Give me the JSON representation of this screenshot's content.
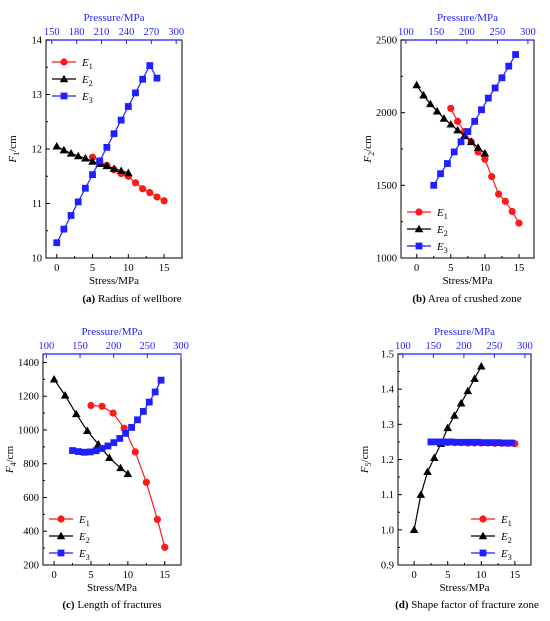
{
  "colors": {
    "E1": "#ff1a1a",
    "E2": "#000000",
    "E3": "#1f1fff",
    "top_axis": "#1f1fff"
  },
  "chart_data": [
    {
      "id": "a",
      "type": "line",
      "caption_letter": "(a)",
      "caption_text": " Radius of wellbore",
      "xlabel": "Stress/MPa",
      "x2label": "Pressure/MPa",
      "ylabel_main": "F",
      "ylabel_sub": "1",
      "ylabel_unit": "/cm",
      "xlim": [
        -1.5,
        17.5
      ],
      "ylim": [
        10,
        14
      ],
      "x2lim": [
        143,
        307
      ],
      "xticks": [
        0,
        5,
        10,
        15
      ],
      "yticks": [
        10,
        11,
        12,
        13,
        14
      ],
      "x2ticks": [
        150,
        180,
        210,
        240,
        270,
        300
      ],
      "legend": [
        {
          "main": "E",
          "sub": "1"
        },
        {
          "main": "E",
          "sub": "2"
        },
        {
          "main": "E",
          "sub": "3"
        }
      ],
      "legend_position": "top-left",
      "series": [
        {
          "marker": "circle",
          "x": [
            5,
            6,
            7,
            8,
            9,
            10,
            11,
            12,
            13,
            14,
            15
          ],
          "y": [
            11.85,
            11.78,
            11.7,
            11.62,
            11.55,
            11.5,
            11.38,
            11.27,
            11.2,
            11.12,
            11.05
          ]
        },
        {
          "marker": "triangle",
          "x": [
            0,
            1,
            2,
            3,
            4,
            5,
            6,
            7,
            8,
            9,
            10
          ],
          "y": [
            12.05,
            11.98,
            11.92,
            11.87,
            11.83,
            11.77,
            11.73,
            11.69,
            11.64,
            11.6,
            11.56
          ]
        },
        {
          "marker": "square",
          "x": [
            0,
            1,
            2,
            3,
            4,
            5,
            6,
            7,
            8,
            9,
            10,
            11,
            12,
            13,
            14
          ],
          "y": [
            10.28,
            10.53,
            10.78,
            11.03,
            11.28,
            11.53,
            11.78,
            12.03,
            12.28,
            12.53,
            12.78,
            13.03,
            13.28,
            13.53,
            13.3
          ]
        }
      ]
    },
    {
      "id": "b",
      "type": "line",
      "caption_letter": "(b)",
      "caption_text": " Area of crushed zone",
      "xlabel": "Stress/MPa",
      "x2label": "Pressure/MPa",
      "ylabel_main": "F",
      "ylabel_sub": "2",
      "ylabel_unit": "/cm",
      "xlim": [
        -2.3,
        17.2
      ],
      "ylim": [
        1000,
        2500
      ],
      "x2lim": [
        92,
        310
      ],
      "xticks": [
        0,
        5,
        10,
        15
      ],
      "yticks": [
        1000,
        1500,
        2000,
        2500
      ],
      "x2ticks": [
        100,
        150,
        200,
        250,
        300
      ],
      "legend": [
        {
          "main": "E",
          "sub": "1"
        },
        {
          "main": "E",
          "sub": "2"
        },
        {
          "main": "E",
          "sub": "3"
        }
      ],
      "legend_position": "bottom-left",
      "series": [
        {
          "marker": "circle",
          "x": [
            5,
            6,
            7,
            8,
            9,
            10,
            11,
            12,
            13,
            14,
            15
          ],
          "y": [
            2030,
            1940,
            1870,
            1800,
            1730,
            1680,
            1560,
            1440,
            1390,
            1320,
            1240
          ]
        },
        {
          "marker": "triangle",
          "x": [
            0,
            1,
            2,
            3,
            4,
            5,
            6,
            7,
            8,
            9,
            10
          ],
          "y": [
            2190,
            2120,
            2060,
            2010,
            1960,
            1920,
            1880,
            1840,
            1800,
            1760,
            1720
          ]
        },
        {
          "marker": "square",
          "x": [
            2.5,
            3.5,
            4.5,
            5.5,
            6.5,
            7.5,
            8.5,
            9.5,
            10.5,
            11.5,
            12.5,
            13.5,
            14.5
          ],
          "y": [
            1500,
            1580,
            1650,
            1730,
            1800,
            1870,
            1940,
            2020,
            2100,
            2170,
            2240,
            2320,
            2400
          ]
        }
      ]
    },
    {
      "id": "c",
      "type": "line",
      "caption_letter": "(c)",
      "caption_text": " Length of fractures",
      "xlabel": "Stress/MPa",
      "x2label": "Pressure/MPa",
      "ylabel_main": "F",
      "ylabel_sub": "4",
      "ylabel_unit": "/cm",
      "xlim": [
        -1.5,
        17.2
      ],
      "ylim": [
        200,
        1450
      ],
      "x2lim": [
        95,
        300
      ],
      "xticks": [
        0,
        5,
        10,
        15
      ],
      "yticks": [
        200,
        400,
        600,
        800,
        1000,
        1200,
        1400
      ],
      "x2ticks": [
        100,
        150,
        200,
        250,
        300
      ],
      "legend": [
        {
          "main": "E",
          "sub": "1"
        },
        {
          "main": "E",
          "sub": "2"
        },
        {
          "main": "E",
          "sub": "3"
        }
      ],
      "legend_position": "bottom-left",
      "series": [
        {
          "marker": "circle",
          "x": [
            5,
            6.5,
            8,
            9.5,
            11,
            12.5,
            14,
            15
          ],
          "y": [
            1145,
            1140,
            1100,
            1010,
            870,
            690,
            470,
            305
          ]
        },
        {
          "marker": "triangle",
          "x": [
            0,
            1.5,
            3,
            4.5,
            6,
            7.5,
            9,
            10
          ],
          "y": [
            1300,
            1205,
            1095,
            995,
            915,
            835,
            775,
            740
          ]
        },
        {
          "marker": "square",
          "x": [
            2.5,
            3.3,
            4.1,
            4.9,
            5.7,
            6.5,
            7.3,
            8.1,
            8.9,
            9.7,
            10.5,
            11.3,
            12.1,
            12.9,
            13.7,
            14.5
          ],
          "y": [
            878,
            872,
            868,
            870,
            877,
            890,
            905,
            925,
            950,
            980,
            1015,
            1060,
            1110,
            1165,
            1225,
            1295
          ]
        }
      ]
    },
    {
      "id": "d",
      "type": "line",
      "caption_letter": "(d)",
      "caption_text": " Shape factor of fracture zone",
      "xlabel": "Stress/MPa",
      "x2label": "Pressure/MPa",
      "ylabel_main": "F",
      "ylabel_sub": "5",
      "ylabel_unit": "/cm",
      "xlim": [
        -2.4,
        17.4
      ],
      "ylim": [
        0.9,
        1.5
      ],
      "x2lim": [
        92,
        310
      ],
      "xticks": [
        0,
        5,
        10,
        15
      ],
      "yticks": [
        0.9,
        1.0,
        1.1,
        1.2,
        1.3,
        1.4,
        1.5
      ],
      "x2ticks": [
        100,
        150,
        200,
        250,
        300
      ],
      "legend": [
        {
          "main": "E",
          "sub": "1"
        },
        {
          "main": "E",
          "sub": "2"
        },
        {
          "main": "E",
          "sub": "3"
        }
      ],
      "legend_position": "bottom-right",
      "series": [
        {
          "marker": "circle",
          "x": [
            5,
            6,
            7,
            8,
            9,
            10,
            11,
            12,
            13,
            14,
            15
          ],
          "y": [
            1.248,
            1.248,
            1.248,
            1.247,
            1.247,
            1.247,
            1.247,
            1.246,
            1.246,
            1.246,
            1.245
          ]
        },
        {
          "marker": "triangle",
          "x": [
            0,
            1,
            2,
            3,
            4,
            5,
            6,
            7,
            8,
            9,
            10
          ],
          "y": [
            1.0,
            1.1,
            1.165,
            1.205,
            1.245,
            1.29,
            1.325,
            1.36,
            1.395,
            1.43,
            1.465
          ]
        },
        {
          "marker": "square",
          "x": [
            2.5,
            3.5,
            4.5,
            5.5,
            6.5,
            7.5,
            8.5,
            9.5,
            10.5,
            11.5,
            12.5,
            13.5,
            14.5
          ],
          "y": [
            1.25,
            1.25,
            1.25,
            1.25,
            1.249,
            1.249,
            1.249,
            1.249,
            1.248,
            1.248,
            1.248,
            1.247,
            1.247
          ]
        }
      ]
    }
  ]
}
